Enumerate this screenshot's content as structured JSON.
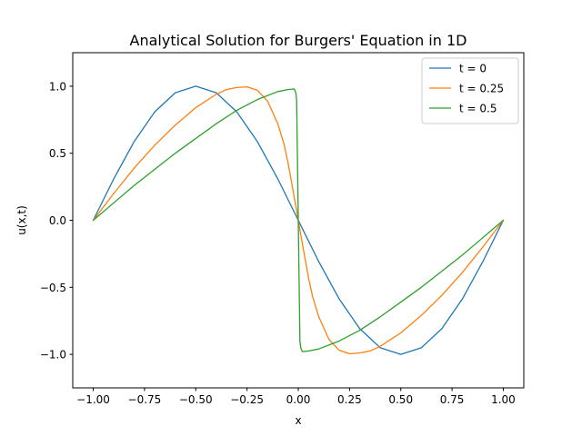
{
  "chart_data": {
    "type": "line",
    "title": "Analytical Solution for Burgers' Equation in 1D",
    "xlabel": "x",
    "ylabel": "u(x,t)",
    "xlim": [
      -1.1,
      1.1
    ],
    "ylim": [
      -1.25,
      1.25
    ],
    "grid": false,
    "legend_position": "top-right",
    "x_ticks": [
      -1.0,
      -0.75,
      -0.5,
      -0.25,
      0.0,
      0.25,
      0.5,
      0.75,
      1.0
    ],
    "x_tick_labels": [
      "−1.00",
      "−0.75",
      "−0.50",
      "−0.25",
      "0.00",
      "0.25",
      "0.50",
      "0.75",
      "1.00"
    ],
    "y_ticks": [
      -1.0,
      -0.5,
      0.0,
      0.5,
      1.0
    ],
    "y_tick_labels": [
      "−1.0",
      "−0.5",
      "0.0",
      "0.5",
      "1.0"
    ],
    "series": [
      {
        "name": "t = 0",
        "color": "#1f77b4",
        "x": [
          -1.0,
          -0.9,
          -0.8,
          -0.7,
          -0.6,
          -0.5,
          -0.4,
          -0.3,
          -0.2,
          -0.1,
          0.0,
          0.1,
          0.2,
          0.3,
          0.4,
          0.5,
          0.6,
          0.7,
          0.8,
          0.9,
          1.0
        ],
        "y": [
          0.0,
          0.309,
          0.588,
          0.809,
          0.951,
          1.0,
          0.951,
          0.809,
          0.588,
          0.309,
          0.0,
          -0.309,
          -0.588,
          -0.809,
          -0.951,
          -1.0,
          -0.951,
          -0.809,
          -0.588,
          -0.309,
          0.0
        ]
      },
      {
        "name": "t = 0.25",
        "color": "#ff7f0e",
        "x": [
          -1.0,
          -0.9,
          -0.8,
          -0.7,
          -0.6,
          -0.5,
          -0.4,
          -0.35,
          -0.3,
          -0.25,
          -0.2,
          -0.15,
          -0.1,
          -0.07,
          -0.05,
          -0.03,
          -0.01,
          0.0,
          0.01,
          0.03,
          0.05,
          0.07,
          0.1,
          0.15,
          0.2,
          0.25,
          0.3,
          0.35,
          0.4,
          0.5,
          0.6,
          0.7,
          0.8,
          0.9,
          1.0
        ],
        "y": [
          0.0,
          0.2,
          0.39,
          0.56,
          0.71,
          0.84,
          0.94,
          0.975,
          0.99,
          0.995,
          0.97,
          0.89,
          0.72,
          0.57,
          0.43,
          0.26,
          0.09,
          0.0,
          -0.09,
          -0.26,
          -0.43,
          -0.57,
          -0.72,
          -0.89,
          -0.97,
          -0.995,
          -0.99,
          -0.975,
          -0.94,
          -0.84,
          -0.71,
          -0.56,
          -0.39,
          -0.2,
          0.0
        ]
      },
      {
        "name": "t = 0.5",
        "color": "#2ca02c",
        "x": [
          -1.0,
          -0.9,
          -0.8,
          -0.7,
          -0.6,
          -0.5,
          -0.4,
          -0.3,
          -0.2,
          -0.1,
          -0.05,
          -0.02,
          -0.012,
          -0.008,
          -0.004,
          0.0,
          0.004,
          0.008,
          0.012,
          0.02,
          0.05,
          0.1,
          0.2,
          0.3,
          0.4,
          0.5,
          0.6,
          0.7,
          0.8,
          0.9,
          1.0
        ],
        "y": [
          0.0,
          0.13,
          0.26,
          0.38,
          0.5,
          0.61,
          0.72,
          0.82,
          0.9,
          0.96,
          0.975,
          0.98,
          0.95,
          0.9,
          0.45,
          0.0,
          -0.45,
          -0.9,
          -0.95,
          -0.98,
          -0.975,
          -0.96,
          -0.9,
          -0.82,
          -0.72,
          -0.61,
          -0.5,
          -0.38,
          -0.26,
          -0.13,
          0.0
        ]
      }
    ]
  }
}
